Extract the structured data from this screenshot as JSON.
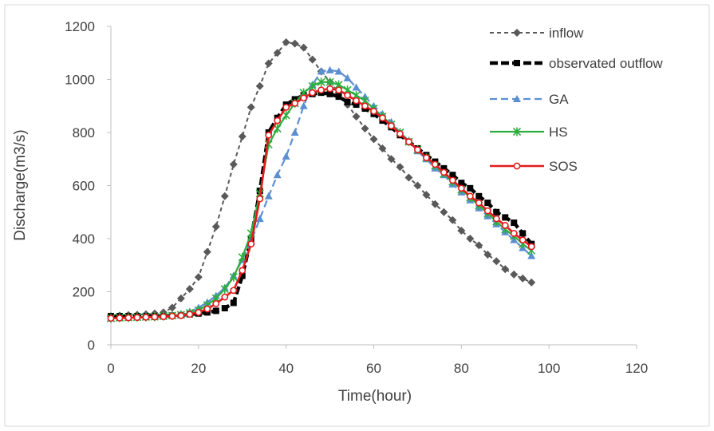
{
  "chart_data": {
    "type": "line",
    "title": "",
    "xlabel": "Time(hour)",
    "ylabel": "Discharge(m3/s)",
    "xlim": [
      0,
      120
    ],
    "ylim": [
      0,
      1200
    ],
    "xticks": [
      0,
      20,
      40,
      60,
      80,
      100,
      120
    ],
    "yticks": [
      0,
      200,
      400,
      600,
      800,
      1000,
      1200
    ],
    "grid": false,
    "legend_position": "top-right",
    "series": [
      {
        "name": "inflow",
        "color": "#595959",
        "marker": "diamond",
        "dash": "dashed",
        "x": [
          0,
          2,
          4,
          6,
          8,
          10,
          12,
          14,
          16,
          18,
          20,
          22,
          24,
          26,
          28,
          30,
          32,
          34,
          36,
          38,
          40,
          42,
          44,
          46,
          48,
          50,
          52,
          54,
          56,
          58,
          60,
          62,
          64,
          66,
          68,
          70,
          72,
          74,
          76,
          78,
          80,
          82,
          84,
          86,
          88,
          90,
          92,
          94,
          96
        ],
        "y": [
          108,
          110,
          112,
          113,
          115,
          118,
          122,
          140,
          175,
          210,
          255,
          350,
          445,
          560,
          680,
          785,
          895,
          975,
          1060,
          1100,
          1140,
          1135,
          1120,
          1075,
          1030,
          990,
          950,
          905,
          860,
          815,
          775,
          740,
          700,
          670,
          630,
          600,
          565,
          530,
          500,
          470,
          430,
          400,
          375,
          340,
          315,
          285,
          265,
          250,
          235
        ]
      },
      {
        "name": "observated outflow",
        "color": "#000000",
        "marker": "square",
        "dash": "dashed",
        "x": [
          0,
          2,
          4,
          6,
          8,
          10,
          12,
          14,
          16,
          18,
          20,
          22,
          24,
          26,
          28,
          30,
          32,
          34,
          36,
          38,
          40,
          42,
          44,
          46,
          48,
          50,
          52,
          54,
          56,
          58,
          60,
          62,
          64,
          66,
          68,
          70,
          72,
          74,
          76,
          78,
          80,
          82,
          84,
          86,
          88,
          90,
          92,
          94,
          96
        ],
        "y": [
          108,
          108,
          108,
          108,
          108,
          108,
          108,
          110,
          112,
          115,
          118,
          122,
          128,
          138,
          158,
          260,
          400,
          580,
          800,
          855,
          905,
          925,
          940,
          945,
          950,
          945,
          935,
          915,
          905,
          890,
          870,
          845,
          820,
          790,
          765,
          740,
          715,
          690,
          665,
          640,
          610,
          590,
          560,
          535,
          500,
          480,
          460,
          420,
          380
        ]
      },
      {
        "name": "GA",
        "color": "#5B8FD0",
        "marker": "triangle",
        "dash": "dashed",
        "x": [
          0,
          2,
          4,
          6,
          8,
          10,
          12,
          14,
          16,
          18,
          20,
          22,
          24,
          26,
          28,
          30,
          32,
          34,
          36,
          38,
          40,
          42,
          44,
          46,
          48,
          50,
          52,
          54,
          56,
          58,
          60,
          62,
          64,
          66,
          68,
          70,
          72,
          74,
          76,
          78,
          80,
          82,
          84,
          86,
          88,
          90,
          92,
          94,
          96
        ],
        "y": [
          100,
          102,
          103,
          104,
          105,
          106,
          108,
          110,
          115,
          125,
          140,
          160,
          185,
          215,
          260,
          320,
          390,
          475,
          560,
          640,
          710,
          800,
          900,
          980,
          1030,
          1035,
          1030,
          1005,
          970,
          935,
          900,
          870,
          840,
          800,
          770,
          730,
          700,
          665,
          640,
          605,
          575,
          545,
          515,
          485,
          455,
          425,
          395,
          365,
          335
        ]
      },
      {
        "name": "HS",
        "color": "#2DAE3E",
        "marker": "star",
        "dash": "solid",
        "x": [
          0,
          2,
          4,
          6,
          8,
          10,
          12,
          14,
          16,
          18,
          20,
          22,
          24,
          26,
          28,
          30,
          32,
          34,
          36,
          38,
          40,
          42,
          44,
          46,
          48,
          50,
          52,
          54,
          56,
          58,
          60,
          62,
          64,
          66,
          68,
          70,
          72,
          74,
          76,
          78,
          80,
          82,
          84,
          86,
          88,
          90,
          92,
          94,
          96
        ],
        "y": [
          100,
          102,
          103,
          104,
          105,
          106,
          108,
          110,
          113,
          120,
          130,
          150,
          175,
          210,
          255,
          330,
          420,
          570,
          755,
          815,
          865,
          910,
          950,
          975,
          990,
          990,
          980,
          960,
          940,
          920,
          890,
          860,
          830,
          800,
          765,
          735,
          705,
          675,
          645,
          615,
          585,
          555,
          525,
          495,
          465,
          435,
          410,
          380,
          355
        ]
      },
      {
        "name": "SOS",
        "color": "#E31A1C",
        "marker": "circle",
        "dash": "solid",
        "x": [
          0,
          2,
          4,
          6,
          8,
          10,
          12,
          14,
          16,
          18,
          20,
          22,
          24,
          26,
          28,
          30,
          32,
          34,
          36,
          38,
          40,
          42,
          44,
          46,
          48,
          50,
          52,
          54,
          56,
          58,
          60,
          62,
          64,
          66,
          68,
          70,
          72,
          74,
          76,
          78,
          80,
          82,
          84,
          86,
          88,
          90,
          92,
          94,
          96
        ],
        "y": [
          100,
          101,
          102,
          103,
          104,
          105,
          106,
          108,
          110,
          115,
          122,
          135,
          155,
          180,
          205,
          280,
          380,
          550,
          790,
          845,
          895,
          910,
          930,
          950,
          960,
          965,
          960,
          940,
          920,
          900,
          880,
          855,
          825,
          795,
          765,
          735,
          705,
          680,
          650,
          620,
          590,
          560,
          535,
          505,
          475,
          450,
          420,
          395,
          370
        ]
      }
    ]
  }
}
